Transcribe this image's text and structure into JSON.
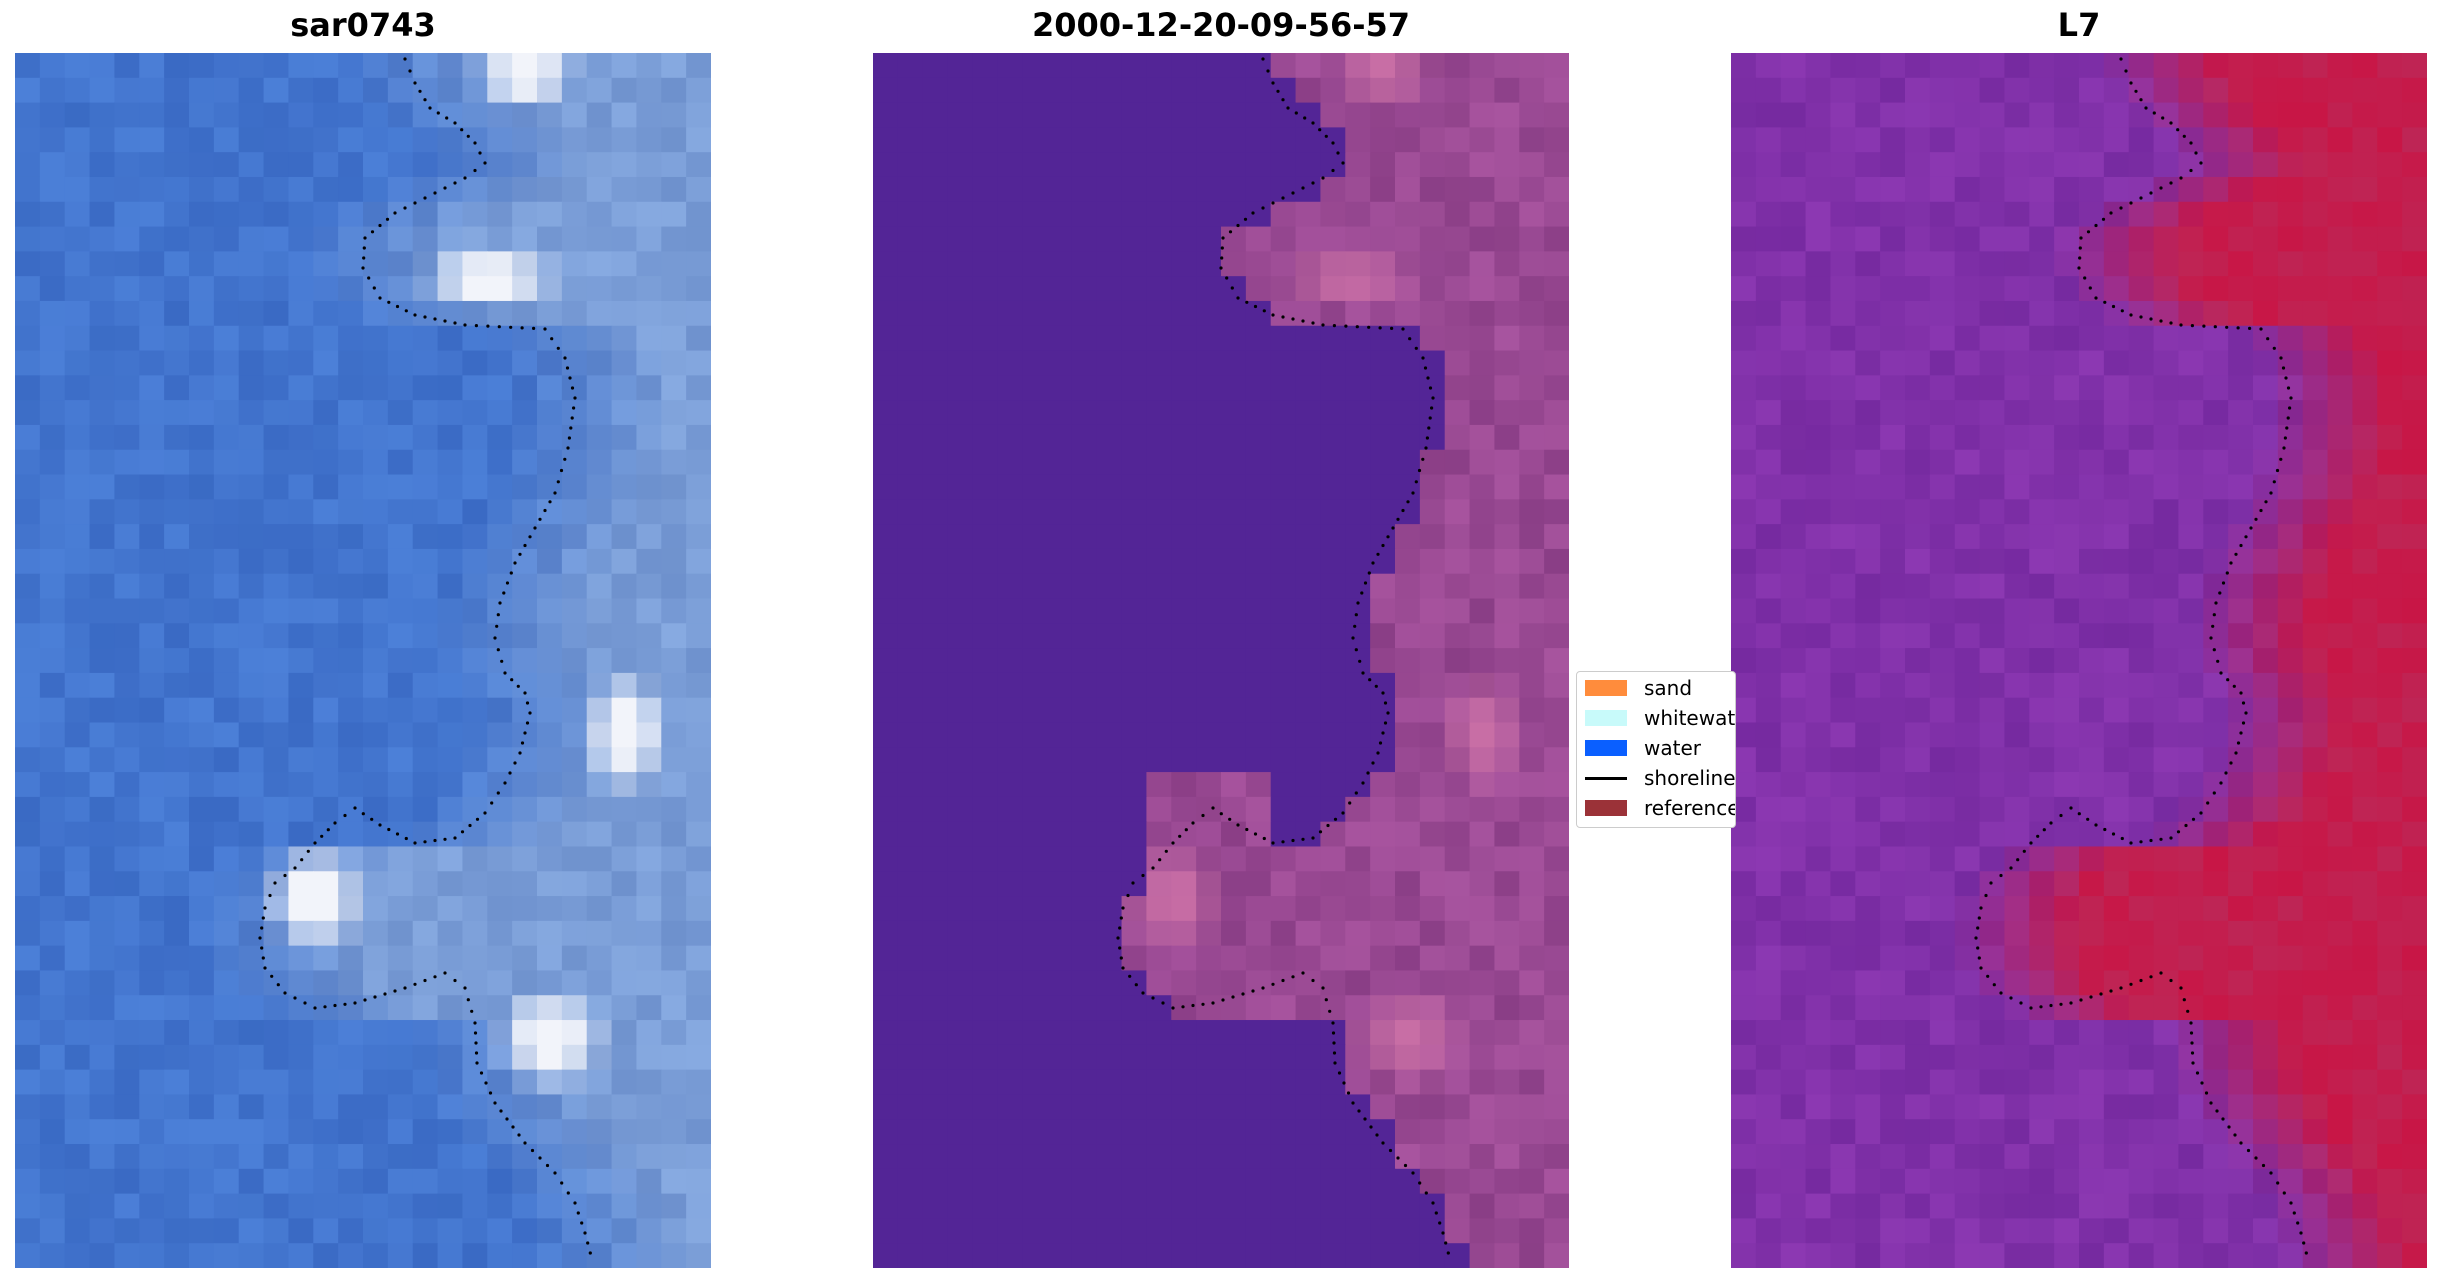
{
  "panels": [
    {
      "title": "sar0743"
    },
    {
      "title": "2000-12-20-09-56-57"
    },
    {
      "title": "L7"
    }
  ],
  "legend": {
    "items": [
      {
        "label": "sand",
        "color": "#ff8c3c",
        "kind": "patch"
      },
      {
        "label": "whitewater",
        "color": "#c8fafa",
        "kind": "patch"
      },
      {
        "label": "water",
        "color": "#0a5fff",
        "kind": "patch"
      },
      {
        "label": "shoreline",
        "color": "#000000",
        "kind": "line"
      },
      {
        "label": "reference",
        "color": "#9b3238",
        "kind": "patch"
      }
    ]
  },
  "colors": {
    "rgb_water": "#3a6cc4",
    "rgb_whitewater": "#f2f4fa",
    "class_water": "#532596",
    "class_land": "#8a3e86",
    "ndwi_water": "#7a2da0",
    "ndwi_land": "#c8123e",
    "shoreline": "#000000"
  }
}
